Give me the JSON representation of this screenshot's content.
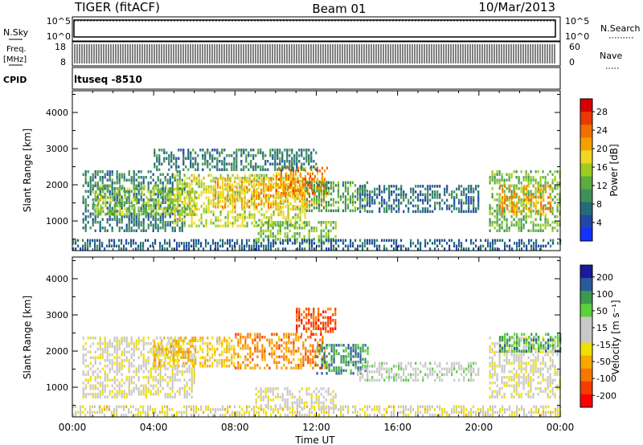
{
  "header": {
    "radar": "TIGER (fitACF)",
    "beam": "Beam 01",
    "date": "10/Mar/2013"
  },
  "panels": {
    "nsky": {
      "label": "N.Sky",
      "yticks": [
        "10^5",
        "10^0"
      ],
      "right_label": "N.Search",
      "right_yticks": [
        "10^5",
        "10^0"
      ]
    },
    "freq": {
      "label_line1": "Freq.",
      "label_line2": "[MHz]",
      "yticks": [
        "18",
        "8"
      ],
      "right_label": "Nave",
      "right_yticks": [
        "60",
        "0"
      ]
    },
    "cpid": {
      "label": "CPID",
      "value": "ltuseq -8510"
    }
  },
  "colors": {
    "power": [
      "#1432ff",
      "#2147a8",
      "#256b78",
      "#3f8f5a",
      "#5aae3e",
      "#9ccc20",
      "#f0d820",
      "#f5a000",
      "#f07000",
      "#e83a00",
      "#d80000"
    ],
    "velocity": [
      "#ff0000",
      "#f43c00",
      "#f77800",
      "#f8a800",
      "#f0e000",
      "#c8c8c8",
      "#c8c8c8",
      "#5ad03a",
      "#3c9a4c",
      "#2a5a9c",
      "#1a1a9a"
    ]
  },
  "chart_data": [
    {
      "type": "heatmap",
      "name": "power",
      "xlabel": "Time UT",
      "ylabel": "Slant Range [km]",
      "xticks": [
        "00:00",
        "04:00",
        "08:00",
        "12:00",
        "16:00",
        "20:00",
        "00:00"
      ],
      "yticks": [
        1000,
        2000,
        3000,
        4000
      ],
      "xlim": [
        0,
        24
      ],
      "ylim": [
        180,
        4600
      ],
      "colorbar": {
        "label": "Power [dB]",
        "ticks": [
          "4",
          "8",
          "12",
          "16",
          "20",
          "24",
          "28"
        ],
        "range": [
          0,
          30
        ]
      },
      "regions": [
        {
          "t0": 0.5,
          "t1": 5.5,
          "r0": 700,
          "r1": 2400,
          "value": 8
        },
        {
          "t0": 1.0,
          "t1": 6.0,
          "r0": 1200,
          "r1": 2000,
          "value": 14
        },
        {
          "t0": 5.0,
          "t1": 11.5,
          "r0": 900,
          "r1": 2300,
          "value": 16
        },
        {
          "t0": 7.0,
          "t1": 12.5,
          "r0": 1400,
          "r1": 2200,
          "value": 20
        },
        {
          "t0": 10.0,
          "t1": 12.5,
          "r0": 1800,
          "r1": 2500,
          "value": 22
        },
        {
          "t0": 9.0,
          "t1": 13.0,
          "r0": 450,
          "r1": 1000,
          "value": 13
        },
        {
          "t0": 11.5,
          "t1": 14.5,
          "r0": 1300,
          "r1": 2100,
          "value": 11
        },
        {
          "t0": 14.0,
          "t1": 20.0,
          "r0": 1300,
          "r1": 2000,
          "value": 7
        },
        {
          "t0": 20.5,
          "t1": 24.0,
          "r0": 700,
          "r1": 2400,
          "value": 13
        },
        {
          "t0": 21.0,
          "t1": 23.5,
          "r0": 1200,
          "r1": 2000,
          "value": 21
        },
        {
          "t0": 0.0,
          "t1": 24.0,
          "r0": 200,
          "r1": 500,
          "value": 6
        },
        {
          "t0": 4.0,
          "t1": 12.0,
          "r0": 2400,
          "r1": 3000,
          "value": 8
        }
      ]
    },
    {
      "type": "heatmap",
      "name": "velocity",
      "xlabel": "Time UT",
      "ylabel": "Slant Range [km]",
      "xticks": [
        "00:00",
        "04:00",
        "08:00",
        "12:00",
        "16:00",
        "20:00",
        "00:00"
      ],
      "yticks": [
        1000,
        2000,
        3000,
        4000
      ],
      "xlim": [
        0,
        24
      ],
      "ylim": [
        180,
        4600
      ],
      "colorbar": {
        "label": "Velocity [m s⁻¹]",
        "ticks": [
          "200",
          "100",
          "50",
          "15",
          "-15",
          "-50",
          "-100",
          "-200"
        ],
        "range": [
          -250,
          250
        ]
      },
      "regions": [
        {
          "t0": 0.5,
          "t1": 6.0,
          "r0": 700,
          "r1": 2400,
          "value": 0
        },
        {
          "t0": 4.0,
          "t1": 8.0,
          "r0": 1600,
          "r1": 2400,
          "value": -60
        },
        {
          "t0": 8.0,
          "t1": 12.5,
          "r0": 1500,
          "r1": 2500,
          "value": -120
        },
        {
          "t0": 11.0,
          "t1": 13.0,
          "r0": 2500,
          "r1": 3200,
          "value": -180
        },
        {
          "t0": 12.0,
          "t1": 14.5,
          "r0": 1400,
          "r1": 2200,
          "value": 150
        },
        {
          "t0": 14.0,
          "t1": 20.0,
          "r0": 1200,
          "r1": 1700,
          "value": 40
        },
        {
          "t0": 9.0,
          "t1": 13.0,
          "r0": 450,
          "r1": 1000,
          "value": 5
        },
        {
          "t0": 20.5,
          "t1": 24.0,
          "r0": 700,
          "r1": 2400,
          "value": 0
        },
        {
          "t0": 21.0,
          "t1": 24.0,
          "r0": 2000,
          "r1": 2500,
          "value": 120
        },
        {
          "t0": 0.0,
          "t1": 24.0,
          "r0": 200,
          "r1": 500,
          "value": -20
        }
      ]
    }
  ]
}
